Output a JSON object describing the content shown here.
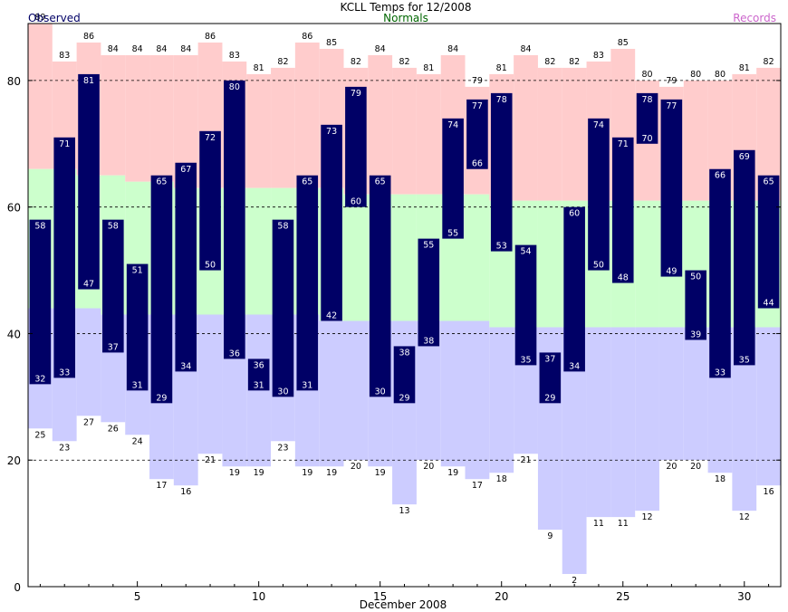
{
  "chart_data": {
    "type": "bar",
    "title": "KCLL Temps for 12/2008",
    "subtitle": "Normals",
    "legend": {
      "observed": "Observed",
      "records": "Records"
    },
    "xlabel": "December 2008",
    "x_ticks": [
      5,
      10,
      15,
      20,
      25,
      30
    ],
    "y_ticks": [
      0,
      20,
      40,
      60,
      80
    ],
    "ylim": [
      0,
      89
    ],
    "xlim": [
      0.5,
      31.5
    ],
    "grid": "dashed horizontal at 20, 40, 60, 80",
    "colors": {
      "observed": "#000066",
      "normal": "#ccffcc",
      "record_high_band": "#ffcccc",
      "record_low_band": "#ccccff",
      "normals_text": "#006600",
      "records_text": "#cc66cc",
      "observed_text": "#000066"
    },
    "days": [
      1,
      2,
      3,
      4,
      5,
      6,
      7,
      8,
      9,
      10,
      11,
      12,
      13,
      14,
      15,
      16,
      17,
      18,
      19,
      20,
      21,
      22,
      23,
      24,
      25,
      26,
      27,
      28,
      29,
      30,
      31
    ],
    "observed_high": [
      58,
      71,
      81,
      58,
      51,
      65,
      67,
      72,
      80,
      36,
      58,
      65,
      73,
      79,
      65,
      38,
      55,
      74,
      77,
      78,
      54,
      37,
      60,
      74,
      71,
      78,
      77,
      50,
      66,
      69,
      65
    ],
    "observed_low": [
      32,
      33,
      47,
      37,
      31,
      29,
      34,
      50,
      36,
      31,
      30,
      31,
      42,
      60,
      30,
      29,
      38,
      55,
      66,
      53,
      35,
      29,
      34,
      50,
      48,
      70,
      49,
      39,
      33,
      35,
      44
    ],
    "normal_high": [
      66,
      66,
      65,
      65,
      64,
      64,
      63,
      63,
      63,
      63,
      63,
      63,
      63,
      62,
      62,
      62,
      62,
      62,
      62,
      61,
      61,
      61,
      61,
      61,
      61,
      61,
      61,
      61,
      61,
      61,
      61
    ],
    "normal_low": [
      44,
      44,
      44,
      43,
      43,
      43,
      43,
      43,
      43,
      43,
      43,
      43,
      42,
      42,
      42,
      42,
      42,
      42,
      42,
      41,
      41,
      41,
      41,
      41,
      41,
      41,
      41,
      41,
      41,
      41,
      41
    ],
    "record_high": [
      89,
      83,
      86,
      84,
      84,
      84,
      84,
      86,
      83,
      81,
      82,
      86,
      85,
      82,
      84,
      82,
      81,
      84,
      79,
      81,
      84,
      82,
      82,
      83,
      85,
      80,
      79,
      80,
      80,
      81,
      82
    ],
    "record_low": [
      25,
      23,
      27,
      26,
      24,
      17,
      16,
      21,
      19,
      19,
      23,
      19,
      19,
      20,
      19,
      13,
      20,
      19,
      17,
      18,
      21,
      9,
      2,
      11,
      11,
      12,
      20,
      20,
      18,
      12,
      16
    ]
  }
}
